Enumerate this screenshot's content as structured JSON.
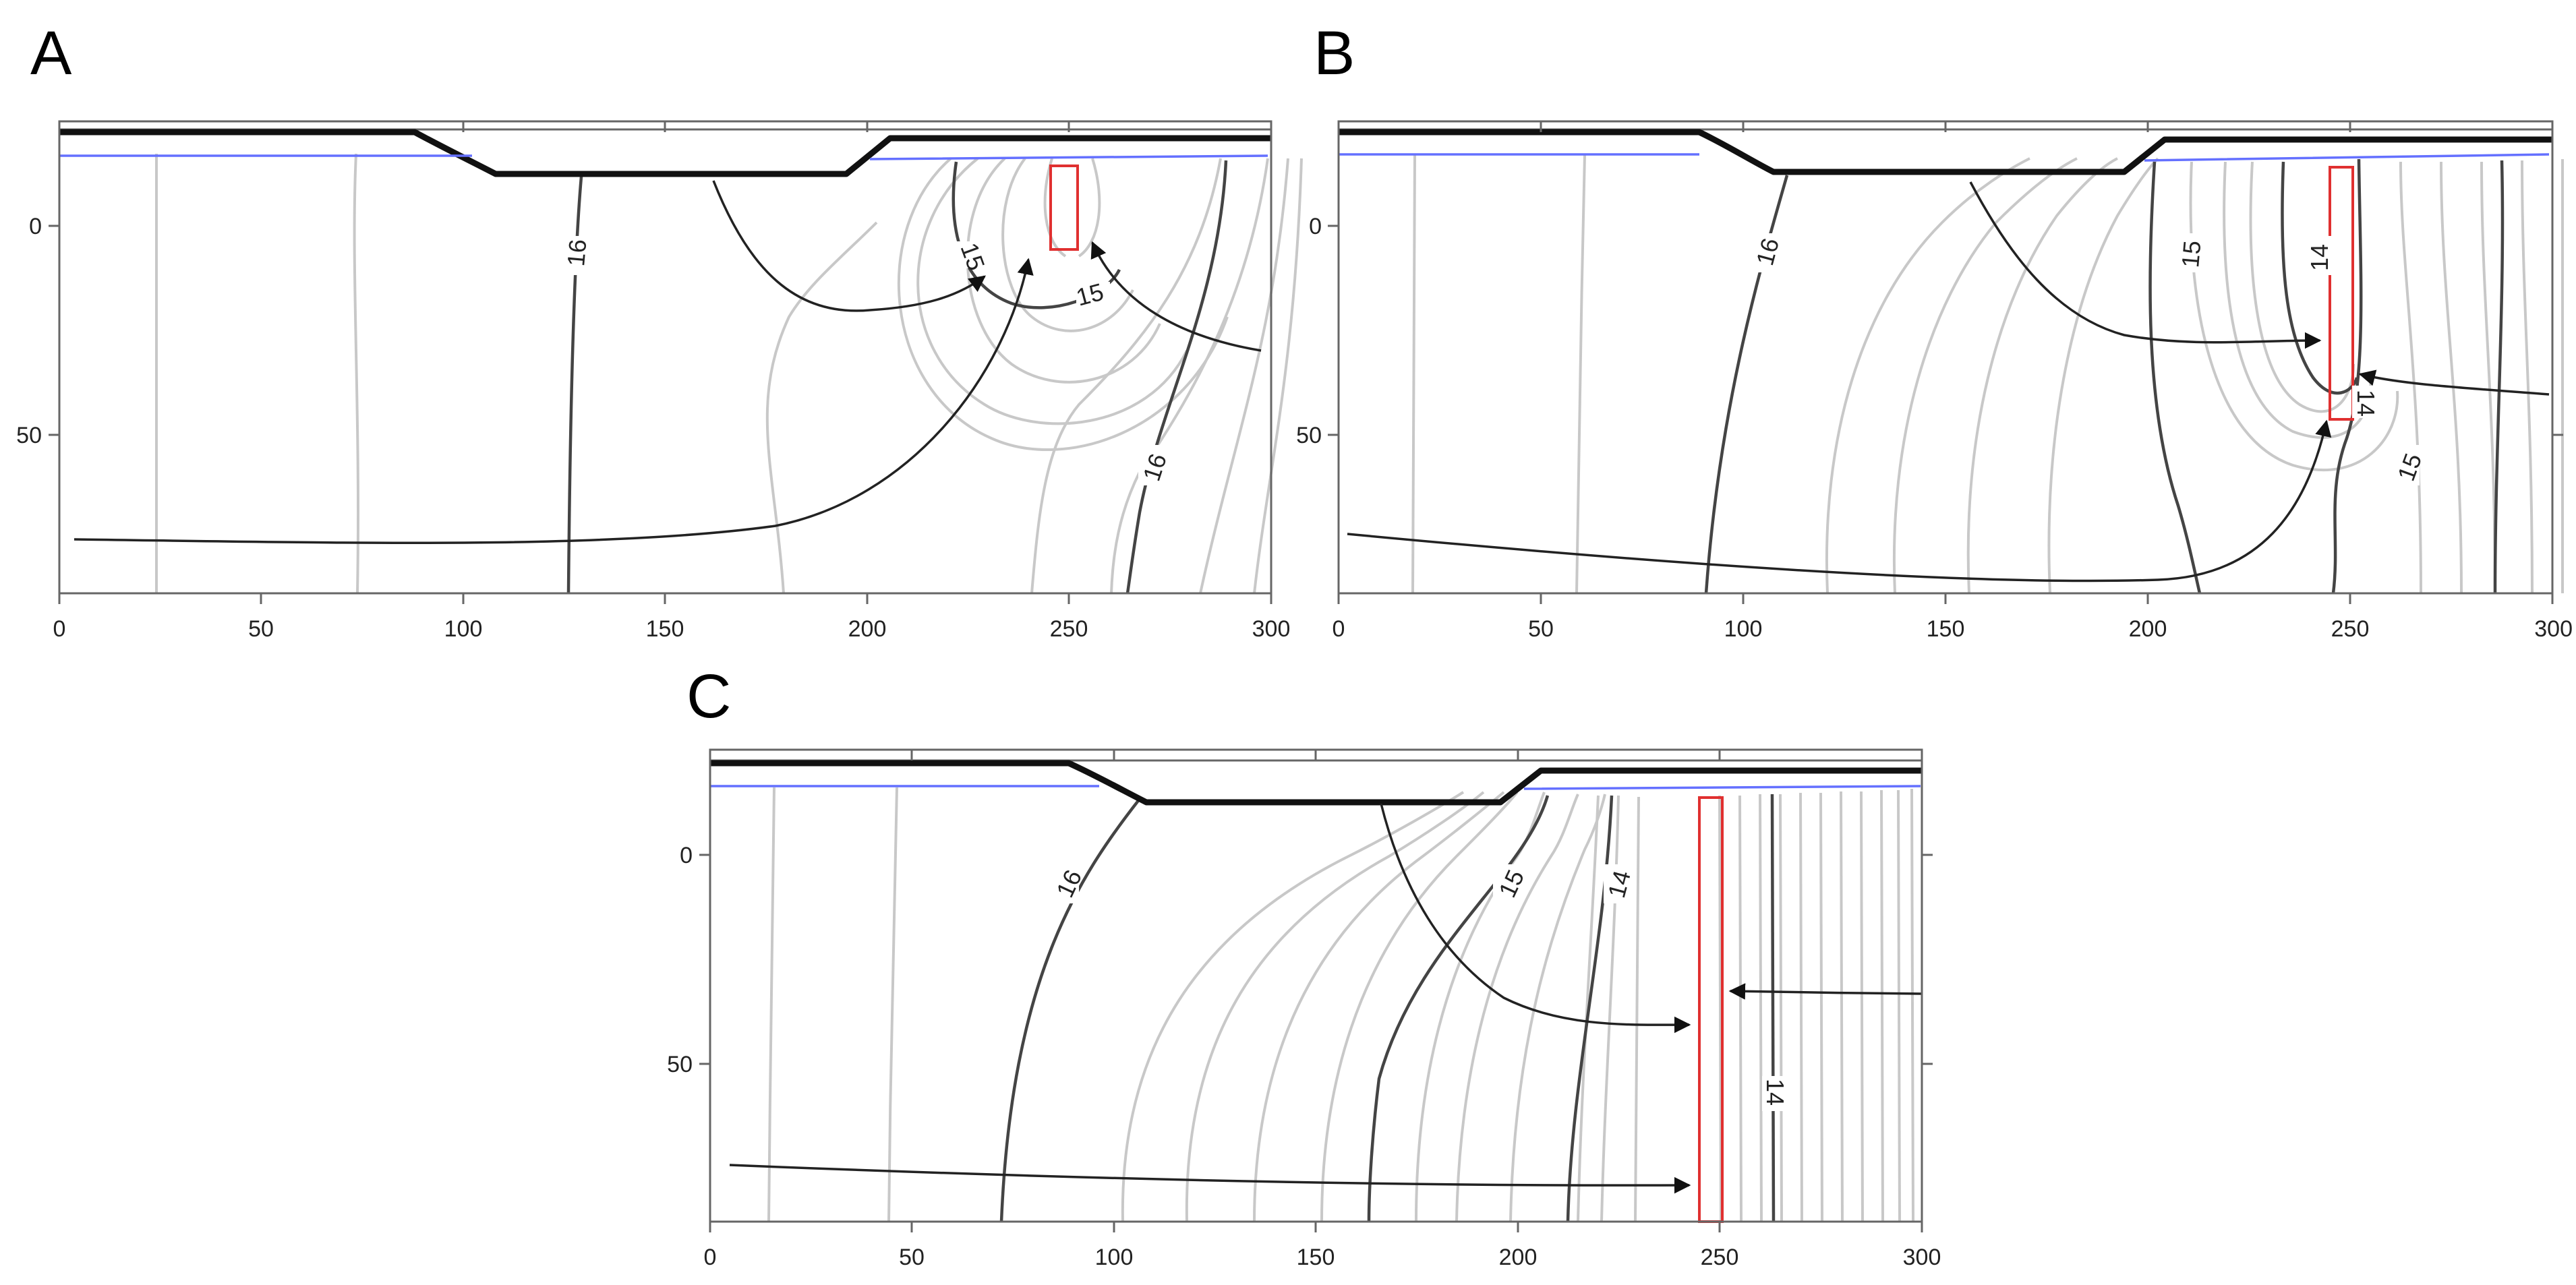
{
  "figure": {
    "panels": [
      {
        "id": "A",
        "letter": "A",
        "x_ticks": [
          "0",
          "50",
          "100",
          "150",
          "200",
          "250",
          "300"
        ],
        "y_ticks": [
          "0",
          "50"
        ],
        "contour_labels": [
          "16",
          "15",
          "15",
          "16"
        ]
      },
      {
        "id": "B",
        "letter": "B",
        "x_ticks": [
          "0",
          "50",
          "100",
          "150",
          "200",
          "250",
          "300"
        ],
        "y_ticks": [
          "0",
          "50"
        ],
        "contour_labels": [
          "16",
          "15",
          "14",
          "14",
          "15"
        ]
      },
      {
        "id": "C",
        "letter": "C",
        "x_ticks": [
          "0",
          "50",
          "100",
          "150",
          "200",
          "250",
          "300"
        ],
        "y_ticks": [
          "0",
          "50"
        ],
        "contour_labels": [
          "16",
          "15",
          "14",
          "14"
        ]
      }
    ],
    "colors": {
      "ground_surface": "#111111",
      "water_table": "#6470ff",
      "pit_outline": "#e03030",
      "major_contour": "#444444",
      "minor_contour": "#c8c8c8",
      "flowline": "#222222"
    }
  }
}
